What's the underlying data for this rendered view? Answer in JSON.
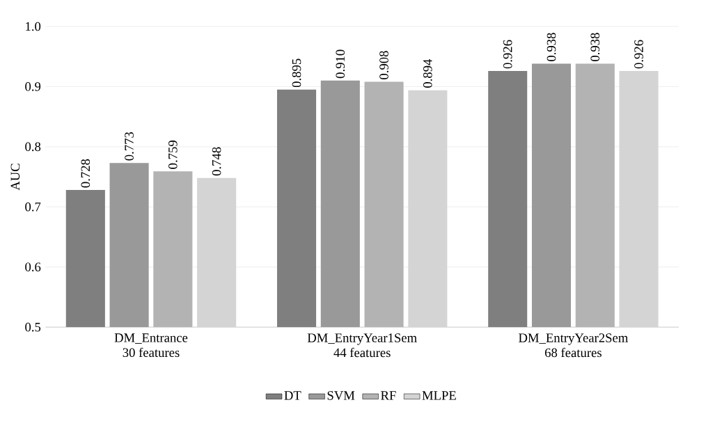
{
  "chart_data": {
    "type": "bar",
    "ylabel": "AUC",
    "categories": [
      "DM_Entrance\n30 features",
      "DM_EntryYear1Sem\n44 features",
      "DM_EntryYear2Sem\n68 features"
    ],
    "series": [
      {
        "name": "DT",
        "color": "#7f7f7f",
        "values": [
          0.728,
          0.895,
          0.926
        ],
        "value_labels": [
          "0.728",
          "0.895",
          "0.926"
        ]
      },
      {
        "name": "SVM",
        "color": "#999999",
        "values": [
          0.773,
          0.91,
          0.938
        ],
        "value_labels": [
          "0.773",
          "0.910",
          "0.938"
        ]
      },
      {
        "name": "RF",
        "color": "#b3b3b3",
        "values": [
          0.759,
          0.908,
          0.938
        ],
        "value_labels": [
          "0.759",
          "0.908",
          "0.938"
        ]
      },
      {
        "name": "MLPE",
        "color": "#d4d4d4",
        "values": [
          0.748,
          0.894,
          0.926
        ],
        "value_labels": [
          "0.748",
          "0.894",
          "0.926"
        ]
      }
    ],
    "ylim": [
      0.5,
      1.0
    ],
    "yticks": [
      {
        "value": 0.5,
        "label": "0.5"
      },
      {
        "value": 0.6,
        "label": "0.6"
      },
      {
        "value": 0.7,
        "label": "0.7"
      },
      {
        "value": 0.8,
        "label": "0.8"
      },
      {
        "value": 0.9,
        "label": "0.9"
      },
      {
        "value": 1.0,
        "label": "1.0"
      }
    ],
    "grid": "y",
    "legend": "bottom"
  }
}
